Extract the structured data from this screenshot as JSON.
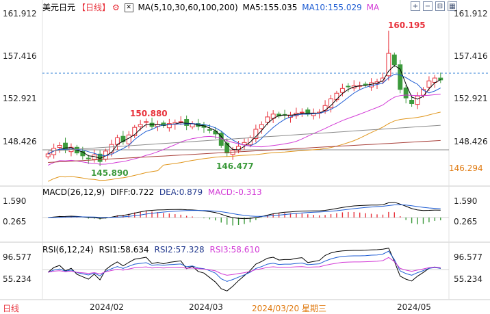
{
  "header": {
    "symbol": "美元日元",
    "period": "【日线】",
    "period_icon": "gear-icon",
    "ma_title": "MA(5,10,30,60,100,200)",
    "ma5": "MA5:155.035",
    "ma10": "MA10:155.029",
    "ma_more": "MA"
  },
  "toolbar_icons": [
    "add-icon",
    "remove-icon",
    "collapse-icon",
    "grid-icon"
  ],
  "main_axis": {
    "labels_left": [
      "161.912",
      "157.416",
      "152.921",
      "148.426"
    ],
    "labels_right": [
      "161.912",
      "157.416",
      "152.921",
      "148.426"
    ],
    "current_price": "146.294"
  },
  "annotations": {
    "high": "160.195",
    "peak_feb": "150.880",
    "low_jan": "145.890",
    "low_mar": "146.477"
  },
  "macd": {
    "title": "MACD(26,12,9)",
    "diff": "DIFF:0.722",
    "dea": "DEA:0.879",
    "macd": "MACD:-0.313",
    "labels_left": [
      "1.590",
      "0.265"
    ],
    "labels_right": [
      "1.590",
      "0.265"
    ]
  },
  "rsi": {
    "title": "RSI(6,12,24)",
    "rsi1": "RSI1:58.634",
    "rsi2": "RSI2:57.328",
    "rsi3": "RSI3:58.610",
    "labels_left": [
      "96.577",
      "55.234"
    ],
    "labels_right": [
      "96.577",
      "55.234"
    ]
  },
  "x_axis": {
    "corner_label": "日线",
    "feb": "2024/02",
    "mar": "2024/03",
    "cursor_date": "2024/03/20 星期三",
    "may": "2024/05"
  },
  "chart_data": {
    "type": "candlestick",
    "closes": [
      147.2,
      147.8,
      148.1,
      147.6,
      147.9,
      147.3,
      147.0,
      146.7,
      147.1,
      146.4,
      147.5,
      148.2,
      148.9,
      148.5,
      149.2,
      150.0,
      150.3,
      150.6,
      150.1,
      150.3,
      150.2,
      150.4,
      150.5,
      150.6,
      150.2,
      150.4,
      150.1,
      150.0,
      149.7,
      149.3,
      148.1,
      147.3,
      147.6,
      148.0,
      148.4,
      148.9,
      149.8,
      150.3,
      151.1,
      151.4,
      151.2,
      151.3,
      151.3,
      151.5,
      151.6,
      151.4,
      151.5,
      151.6,
      152.3,
      153.0,
      153.6,
      154.1,
      154.3,
      154.4,
      154.4,
      154.5,
      154.7,
      154.8,
      155.2,
      157.8,
      156.6,
      154.0,
      153.1,
      152.5,
      153.3,
      154.0,
      154.9,
      155.2,
      155.0
    ],
    "peak_high": 160.195,
    "label_highs": [
      150.88
    ],
    "label_lows": [
      145.89,
      146.477
    ],
    "macd_ticks": [
      1.59,
      0.265
    ],
    "rsi_ticks": [
      96.577,
      55.234
    ]
  }
}
